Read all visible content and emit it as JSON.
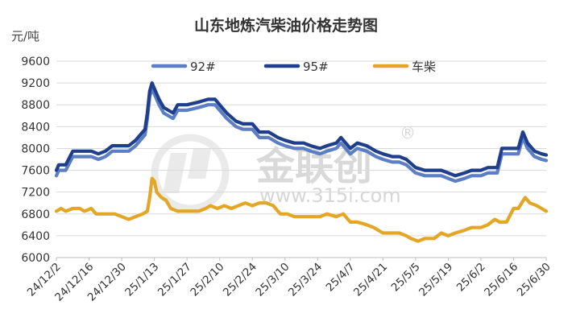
{
  "chart_data": {
    "type": "line",
    "title": "山东地炼汽柴油价格走势图",
    "ylabel": "元/吨",
    "xlabel": "",
    "ylim": [
      6000,
      9600
    ],
    "yticks": [
      6000,
      6400,
      6800,
      7200,
      7600,
      8000,
      8400,
      8800,
      9200,
      9600
    ],
    "x_tick_labels": [
      "24/12/2",
      "24/12/16",
      "24/12/30",
      "25/1/13",
      "25/1/27",
      "25/2/10",
      "25/2/24",
      "25/3/10",
      "25/3/24",
      "25/4/7",
      "25/4/21",
      "25/5/5",
      "25/5/19",
      "25/6/2",
      "25/6/16",
      "25/6/30"
    ],
    "grid": true,
    "legend_position": "top-center",
    "series": [
      {
        "name": "92#",
        "color": "#5b7ec4",
        "points": [
          [
            "24/12/2",
            7500
          ],
          [
            "24/12/3",
            7600
          ],
          [
            "24/12/5",
            7600
          ],
          [
            "24/12/6",
            7600
          ],
          [
            "24/12/9",
            7850
          ],
          [
            "24/12/13",
            7850
          ],
          [
            "24/12/17",
            7850
          ],
          [
            "24/12/20",
            7800
          ],
          [
            "24/12/23",
            7850
          ],
          [
            "24/12/26",
            7950
          ],
          [
            "24/12/30",
            7950
          ],
          [
            "25/1/2",
            7950
          ],
          [
            "25/1/5",
            8050
          ],
          [
            "25/1/7",
            8150
          ],
          [
            "25/1/9",
            8250
          ],
          [
            "25/1/10",
            8550
          ],
          [
            "25/1/11",
            8950
          ],
          [
            "25/1/12",
            9100
          ],
          [
            "25/1/13",
            9000
          ],
          [
            "25/1/15",
            8800
          ],
          [
            "25/1/17",
            8650
          ],
          [
            "25/1/19",
            8600
          ],
          [
            "25/1/21",
            8550
          ],
          [
            "25/1/23",
            8700
          ],
          [
            "25/1/27",
            8700
          ],
          [
            "25/2/1",
            8750
          ],
          [
            "25/2/5",
            8800
          ],
          [
            "25/2/8",
            8800
          ],
          [
            "25/2/10",
            8700
          ],
          [
            "25/2/13",
            8550
          ],
          [
            "25/2/17",
            8400
          ],
          [
            "25/2/20",
            8350
          ],
          [
            "25/2/24",
            8350
          ],
          [
            "25/2/27",
            8200
          ],
          [
            "25/3/3",
            8200
          ],
          [
            "25/3/7",
            8100
          ],
          [
            "25/3/10",
            8050
          ],
          [
            "25/3/14",
            8000
          ],
          [
            "25/3/18",
            8000
          ],
          [
            "25/3/21",
            7950
          ],
          [
            "25/3/25",
            7900
          ],
          [
            "25/3/28",
            7950
          ],
          [
            "25/4/1",
            8000
          ],
          [
            "25/4/3",
            8100
          ],
          [
            "25/4/7",
            7900
          ],
          [
            "25/4/10",
            8000
          ],
          [
            "25/4/14",
            7950
          ],
          [
            "25/4/18",
            7850
          ],
          [
            "25/4/21",
            7800
          ],
          [
            "25/4/25",
            7750
          ],
          [
            "25/4/28",
            7750
          ],
          [
            "25/5/1",
            7700
          ],
          [
            "25/5/5",
            7550
          ],
          [
            "25/5/9",
            7500
          ],
          [
            "25/5/13",
            7500
          ],
          [
            "25/5/16",
            7500
          ],
          [
            "25/5/19",
            7450
          ],
          [
            "25/5/22",
            7400
          ],
          [
            "25/5/26",
            7450
          ],
          [
            "25/5/29",
            7500
          ],
          [
            "25/6/2",
            7500
          ],
          [
            "25/6/5",
            7550
          ],
          [
            "25/6/9",
            7550
          ],
          [
            "25/6/11",
            7900
          ],
          [
            "25/6/16",
            7900
          ],
          [
            "25/6/18",
            7900
          ],
          [
            "25/6/20",
            8200
          ],
          [
            "25/6/22",
            8000
          ],
          [
            "25/6/25",
            7850
          ],
          [
            "25/6/28",
            7800
          ],
          [
            "25/6/30",
            7780
          ]
        ]
      },
      {
        "name": "95#",
        "color": "#1f3e8c",
        "points": [
          [
            "24/12/2",
            7600
          ],
          [
            "24/12/3",
            7700
          ],
          [
            "24/12/5",
            7700
          ],
          [
            "24/12/6",
            7700
          ],
          [
            "24/12/9",
            7950
          ],
          [
            "24/12/13",
            7950
          ],
          [
            "24/12/17",
            7950
          ],
          [
            "24/12/20",
            7900
          ],
          [
            "24/12/23",
            7950
          ],
          [
            "24/12/26",
            8050
          ],
          [
            "24/12/30",
            8050
          ],
          [
            "25/1/2",
            8050
          ],
          [
            "25/1/5",
            8150
          ],
          [
            "25/1/7",
            8250
          ],
          [
            "25/1/9",
            8350
          ],
          [
            "25/1/10",
            8650
          ],
          [
            "25/1/11",
            9050
          ],
          [
            "25/1/12",
            9200
          ],
          [
            "25/1/13",
            9100
          ],
          [
            "25/1/15",
            8900
          ],
          [
            "25/1/17",
            8750
          ],
          [
            "25/1/19",
            8700
          ],
          [
            "25/1/21",
            8650
          ],
          [
            "25/1/23",
            8800
          ],
          [
            "25/1/27",
            8800
          ],
          [
            "25/2/1",
            8850
          ],
          [
            "25/2/5",
            8900
          ],
          [
            "25/2/8",
            8900
          ],
          [
            "25/2/10",
            8800
          ],
          [
            "25/2/13",
            8650
          ],
          [
            "25/2/17",
            8500
          ],
          [
            "25/2/20",
            8450
          ],
          [
            "25/2/24",
            8450
          ],
          [
            "25/2/27",
            8300
          ],
          [
            "25/3/3",
            8300
          ],
          [
            "25/3/7",
            8200
          ],
          [
            "25/3/10",
            8150
          ],
          [
            "25/3/14",
            8100
          ],
          [
            "25/3/18",
            8100
          ],
          [
            "25/3/21",
            8050
          ],
          [
            "25/3/25",
            8000
          ],
          [
            "25/3/28",
            8050
          ],
          [
            "25/4/1",
            8100
          ],
          [
            "25/4/3",
            8200
          ],
          [
            "25/4/7",
            8000
          ],
          [
            "25/4/10",
            8100
          ],
          [
            "25/4/14",
            8050
          ],
          [
            "25/4/18",
            7950
          ],
          [
            "25/4/21",
            7900
          ],
          [
            "25/4/25",
            7850
          ],
          [
            "25/4/28",
            7850
          ],
          [
            "25/5/1",
            7800
          ],
          [
            "25/5/5",
            7650
          ],
          [
            "25/5/9",
            7600
          ],
          [
            "25/5/13",
            7600
          ],
          [
            "25/5/16",
            7600
          ],
          [
            "25/5/19",
            7550
          ],
          [
            "25/5/22",
            7500
          ],
          [
            "25/5/26",
            7550
          ],
          [
            "25/5/29",
            7600
          ],
          [
            "25/6/2",
            7600
          ],
          [
            "25/6/5",
            7650
          ],
          [
            "25/6/9",
            7650
          ],
          [
            "25/6/11",
            8000
          ],
          [
            "25/6/16",
            8000
          ],
          [
            "25/6/18",
            8000
          ],
          [
            "25/6/20",
            8300
          ],
          [
            "25/6/22",
            8100
          ],
          [
            "25/6/25",
            7950
          ],
          [
            "25/6/28",
            7900
          ],
          [
            "25/6/30",
            7880
          ]
        ]
      },
      {
        "name": "车柴",
        "color": "#e3a626",
        "points": [
          [
            "24/12/2",
            6850
          ],
          [
            "24/12/4",
            6900
          ],
          [
            "24/12/6",
            6850
          ],
          [
            "24/12/9",
            6900
          ],
          [
            "24/12/12",
            6900
          ],
          [
            "24/12/14",
            6850
          ],
          [
            "24/12/17",
            6900
          ],
          [
            "24/12/19",
            6800
          ],
          [
            "24/12/23",
            6800
          ],
          [
            "24/12/27",
            6800
          ],
          [
            "24/12/30",
            6750
          ],
          [
            "25/1/2",
            6700
          ],
          [
            "25/1/5",
            6750
          ],
          [
            "25/1/8",
            6800
          ],
          [
            "25/1/10",
            6850
          ],
          [
            "25/1/11",
            7100
          ],
          [
            "25/1/12",
            7450
          ],
          [
            "25/1/13",
            7400
          ],
          [
            "25/1/14",
            7200
          ],
          [
            "25/1/16",
            7100
          ],
          [
            "25/1/18",
            7050
          ],
          [
            "25/1/20",
            6900
          ],
          [
            "25/1/23",
            6850
          ],
          [
            "25/1/26",
            6850
          ],
          [
            "25/1/29",
            6850
          ],
          [
            "25/2/1",
            6850
          ],
          [
            "25/2/4",
            6900
          ],
          [
            "25/2/6",
            6950
          ],
          [
            "25/2/9",
            6900
          ],
          [
            "25/2/12",
            6950
          ],
          [
            "25/2/15",
            6900
          ],
          [
            "25/2/18",
            6950
          ],
          [
            "25/2/21",
            7000
          ],
          [
            "25/2/24",
            6950
          ],
          [
            "25/2/27",
            7000
          ],
          [
            "25/3/2",
            7000
          ],
          [
            "25/3/5",
            6950
          ],
          [
            "25/3/8",
            6800
          ],
          [
            "25/3/11",
            6800
          ],
          [
            "25/3/14",
            6750
          ],
          [
            "25/3/18",
            6750
          ],
          [
            "25/3/21",
            6750
          ],
          [
            "25/3/25",
            6750
          ],
          [
            "25/3/28",
            6800
          ],
          [
            "25/4/1",
            6750
          ],
          [
            "25/4/4",
            6800
          ],
          [
            "25/4/7",
            6650
          ],
          [
            "25/4/10",
            6650
          ],
          [
            "25/4/14",
            6600
          ],
          [
            "25/4/17",
            6550
          ],
          [
            "25/4/21",
            6450
          ],
          [
            "25/4/25",
            6450
          ],
          [
            "25/4/28",
            6450
          ],
          [
            "25/5/1",
            6400
          ],
          [
            "25/5/3",
            6350
          ],
          [
            "25/5/6",
            6300
          ],
          [
            "25/5/9",
            6350
          ],
          [
            "25/5/13",
            6350
          ],
          [
            "25/5/16",
            6450
          ],
          [
            "25/5/19",
            6400
          ],
          [
            "25/5/22",
            6450
          ],
          [
            "25/5/26",
            6500
          ],
          [
            "25/5/29",
            6550
          ],
          [
            "25/6/2",
            6550
          ],
          [
            "25/6/5",
            6600
          ],
          [
            "25/6/8",
            6700
          ],
          [
            "25/6/10",
            6650
          ],
          [
            "25/6/13",
            6650
          ],
          [
            "25/6/16",
            6900
          ],
          [
            "25/6/18",
            6900
          ],
          [
            "25/6/21",
            7100
          ],
          [
            "25/6/23",
            7000
          ],
          [
            "25/6/26",
            6950
          ],
          [
            "25/6/28",
            6900
          ],
          [
            "25/6/30",
            6850
          ]
        ]
      }
    ]
  },
  "watermark": {
    "brand": "金联创",
    "registered_mark": "®",
    "url": "www.315i.com"
  }
}
